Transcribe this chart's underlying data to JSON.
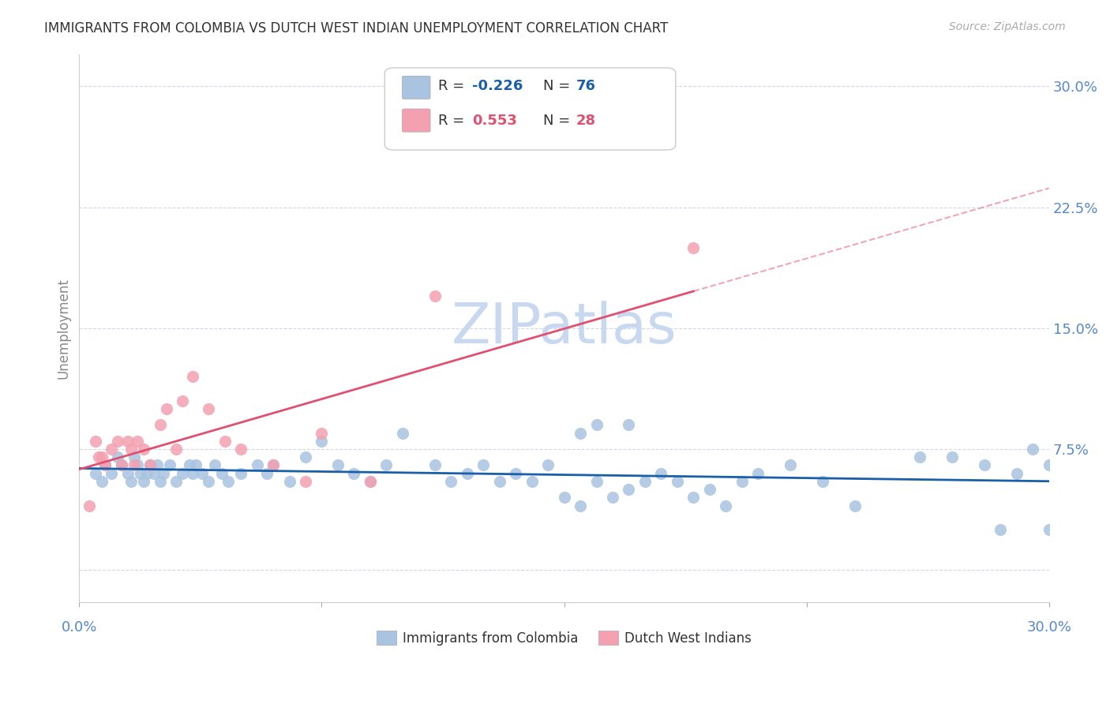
{
  "title": "IMMIGRANTS FROM COLOMBIA VS DUTCH WEST INDIAN UNEMPLOYMENT CORRELATION CHART",
  "source": "Source: ZipAtlas.com",
  "ylabel": "Unemployment",
  "yticks": [
    0.0,
    0.075,
    0.15,
    0.225,
    0.3
  ],
  "ytick_labels": [
    "",
    "7.5%",
    "15.0%",
    "22.5%",
    "30.0%"
  ],
  "xlim": [
    0.0,
    0.3
  ],
  "ylim": [
    -0.02,
    0.32
  ],
  "watermark": "ZIPatlas",
  "legend_label1": "Immigrants from Colombia",
  "legend_label2": "Dutch West Indians",
  "series1_color": "#a8c4e0",
  "series2_color": "#f4a0b0",
  "line1_color": "#1a5fa8",
  "line2_color": "#e05070",
  "background_color": "#ffffff",
  "grid_color": "#d0d8e8",
  "title_color": "#333333",
  "axis_label_color": "#5588cc",
  "watermark_color": "#c8d8f0",
  "series1_x": [
    0.005,
    0.007,
    0.008,
    0.01,
    0.012,
    0.013,
    0.015,
    0.016,
    0.017,
    0.018,
    0.019,
    0.02,
    0.021,
    0.022,
    0.023,
    0.024,
    0.025,
    0.026,
    0.028,
    0.03,
    0.032,
    0.034,
    0.035,
    0.036,
    0.038,
    0.04,
    0.042,
    0.044,
    0.046,
    0.05,
    0.055,
    0.058,
    0.06,
    0.065,
    0.07,
    0.075,
    0.08,
    0.085,
    0.09,
    0.1,
    0.11,
    0.115,
    0.12,
    0.125,
    0.13,
    0.135,
    0.14,
    0.145,
    0.15,
    0.155,
    0.16,
    0.165,
    0.17,
    0.175,
    0.18,
    0.185,
    0.19,
    0.195,
    0.2,
    0.205,
    0.21,
    0.22,
    0.23,
    0.24,
    0.16,
    0.17,
    0.26,
    0.27,
    0.28,
    0.3,
    0.3,
    0.295,
    0.29,
    0.285,
    0.155,
    0.095
  ],
  "series1_y": [
    0.06,
    0.055,
    0.065,
    0.06,
    0.07,
    0.065,
    0.06,
    0.055,
    0.07,
    0.065,
    0.06,
    0.055,
    0.06,
    0.065,
    0.06,
    0.065,
    0.055,
    0.06,
    0.065,
    0.055,
    0.06,
    0.065,
    0.06,
    0.065,
    0.06,
    0.055,
    0.065,
    0.06,
    0.055,
    0.06,
    0.065,
    0.06,
    0.065,
    0.055,
    0.07,
    0.08,
    0.065,
    0.06,
    0.055,
    0.085,
    0.065,
    0.055,
    0.06,
    0.065,
    0.055,
    0.06,
    0.055,
    0.065,
    0.045,
    0.04,
    0.055,
    0.045,
    0.05,
    0.055,
    0.06,
    0.055,
    0.045,
    0.05,
    0.04,
    0.055,
    0.06,
    0.065,
    0.055,
    0.04,
    0.09,
    0.09,
    0.07,
    0.07,
    0.065,
    0.065,
    0.025,
    0.075,
    0.06,
    0.025,
    0.085,
    0.065
  ],
  "series2_x": [
    0.003,
    0.005,
    0.006,
    0.007,
    0.008,
    0.01,
    0.012,
    0.013,
    0.015,
    0.016,
    0.017,
    0.018,
    0.02,
    0.022,
    0.025,
    0.027,
    0.03,
    0.032,
    0.035,
    0.04,
    0.045,
    0.05,
    0.06,
    0.07,
    0.075,
    0.09,
    0.11,
    0.19
  ],
  "series2_y": [
    0.04,
    0.08,
    0.07,
    0.07,
    0.065,
    0.075,
    0.08,
    0.065,
    0.08,
    0.075,
    0.065,
    0.08,
    0.075,
    0.065,
    0.09,
    0.1,
    0.075,
    0.105,
    0.12,
    0.1,
    0.08,
    0.075,
    0.065,
    0.055,
    0.085,
    0.055,
    0.17,
    0.2
  ]
}
